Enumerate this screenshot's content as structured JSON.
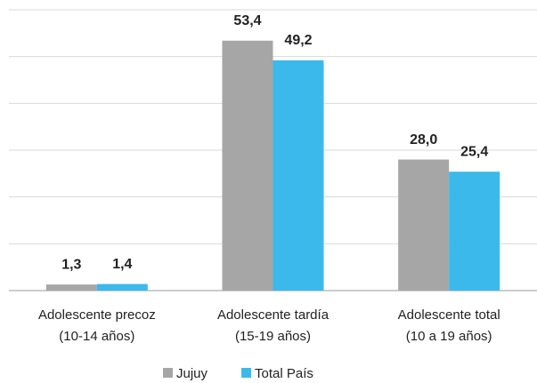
{
  "chart_data": {
    "type": "bar",
    "categories": [
      "Adolescente precoz\n(10-14 años)",
      "Adolescente tardía\n(15-19 años)",
      "Adolescente total\n(10 a 19 años)"
    ],
    "series": [
      {
        "name": "Jujuy",
        "color": "#a6a6a6",
        "values": [
          1.3,
          53.4,
          28.0
        ],
        "value_labels": [
          "1,3",
          "53,4",
          "28,0"
        ]
      },
      {
        "name": "Total País",
        "color": "#3bb9ea",
        "values": [
          1.4,
          49.2,
          25.4
        ],
        "value_labels": [
          "1,4",
          "49,2",
          "25,4"
        ]
      }
    ],
    "ylim": [
      0,
      60
    ],
    "yticks": [
      0,
      10,
      20,
      30,
      40,
      50,
      60
    ],
    "grid": true,
    "legend": "bottom"
  }
}
